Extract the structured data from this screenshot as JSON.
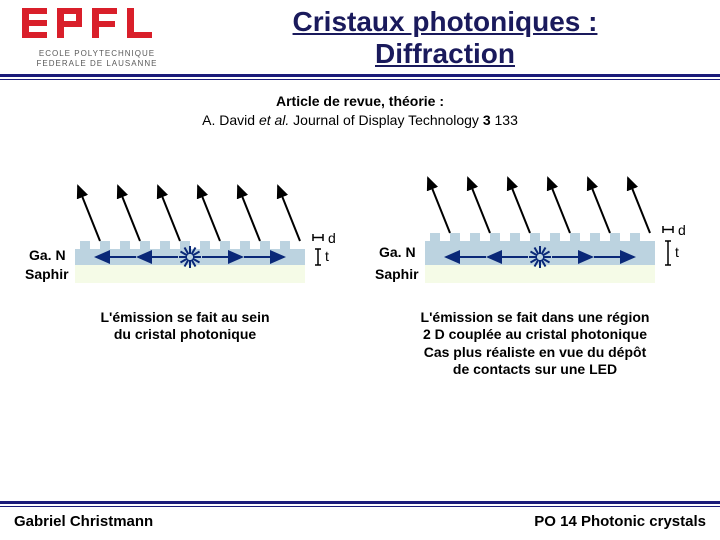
{
  "logo": {
    "name": "EPFL",
    "subline": "ECOLE POLYTECHNIQUE\nFEDERALE DE LAUSANNE",
    "fill": "#d91f2a"
  },
  "title": "Cristaux photoniques :\nDiffraction",
  "title_color": "#1a1a5c",
  "rule_color": "#1b1b7a",
  "article": {
    "line1_bold": "Article de revue, théorie :",
    "line2_prefix": "A. David ",
    "line2_em": "et al.",
    "line2_suffix": " Journal of Display Technology ",
    "line2_bold": "3",
    "line2_end": " 133"
  },
  "diagram": {
    "type": "infographic",
    "gan_fill": "#bcd3e0",
    "sapphire_fill": "#f5fbe7",
    "tooth_color": "#bcd3e0",
    "burst_color": "#0a2878",
    "arrow_out_color": "#000000",
    "arrow_in_color": "#0a2878",
    "d_label": "d",
    "t_label": "t",
    "gan_label": "Ga. N",
    "sapphire_label": "Saphir",
    "label_fontsize": 14,
    "dt_fontsize": 14,
    "arrow_width": 2,
    "teeth_count": 11,
    "tooth_width": 10,
    "tooth_gap": 10,
    "tooth_height": 8
  },
  "left_caption": "L'émission se fait au sein\ndu cristal photonique",
  "right_caption": "L'émission se fait dans une région\n2 D couplée au cristal photonique\nCas plus réaliste en vue du dépôt\nde contacts sur une LED",
  "footer": {
    "left": "Gabriel Christmann",
    "right": "PO 14 Photonic crystals"
  }
}
